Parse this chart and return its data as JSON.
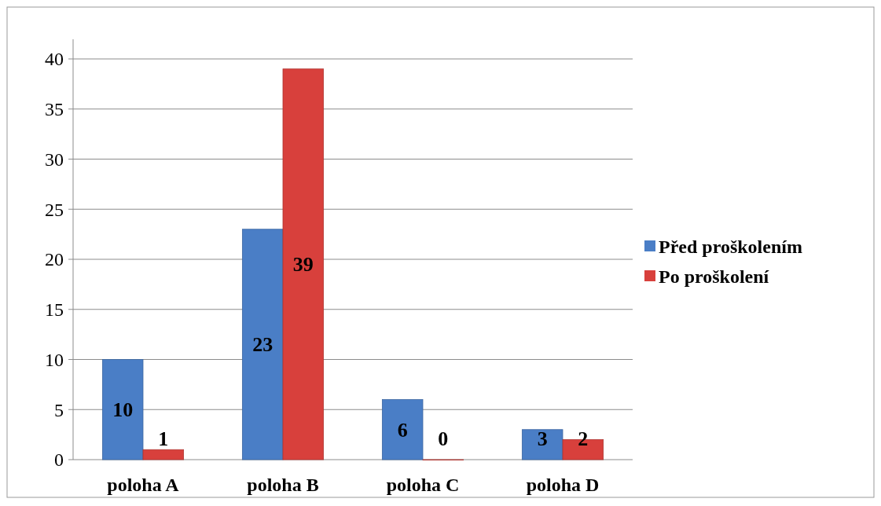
{
  "chart_data": {
    "type": "bar",
    "categories": [
      "poloha A",
      "poloha B",
      "poloha C",
      "poloha D"
    ],
    "series": [
      {
        "name": "Před proškolením",
        "color": "#4a7ec6",
        "values": [
          10,
          23,
          6,
          3
        ]
      },
      {
        "name": "Po proškolení",
        "color": "#d8403c",
        "values": [
          1,
          39,
          0,
          2
        ]
      }
    ],
    "ylim": [
      0,
      40
    ],
    "yticks": [
      0,
      5,
      10,
      15,
      20,
      25,
      30,
      35,
      40
    ],
    "grid": "y",
    "legend": "right",
    "data_labels": true
  }
}
